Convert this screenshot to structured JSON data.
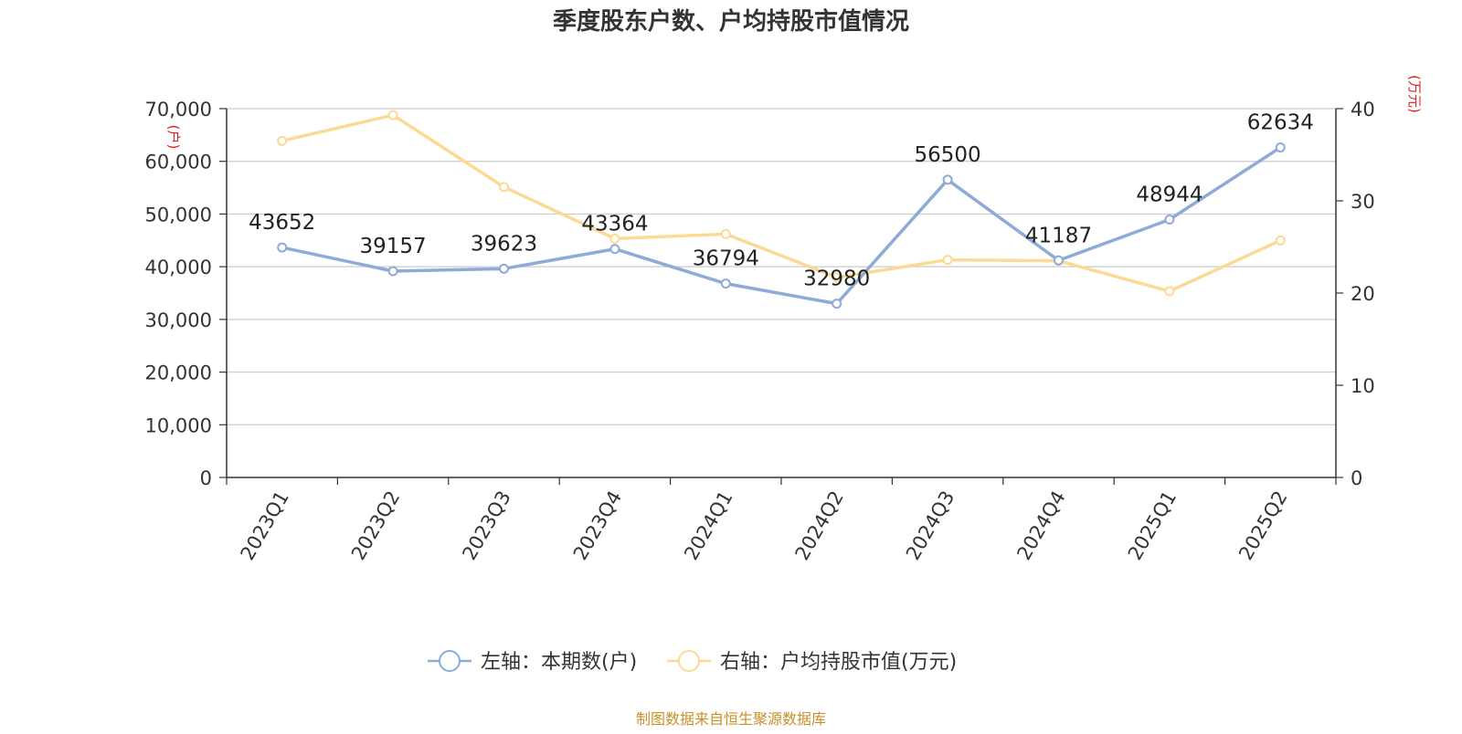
{
  "chart_data": {
    "type": "line",
    "title": "季度股东户数、户均持股市值情况",
    "categories": [
      "2023Q1",
      "2023Q2",
      "2023Q3",
      "2023Q4",
      "2024Q1",
      "2024Q2",
      "2024Q3",
      "2024Q4",
      "2025Q1",
      "2025Q2"
    ],
    "left_axis": {
      "unit_label": "(户)",
      "ylim": [
        0,
        70000
      ],
      "ticks": [
        "0",
        "10,000",
        "20,000",
        "30,000",
        "40,000",
        "50,000",
        "60,000",
        "70,000"
      ]
    },
    "right_axis": {
      "unit_label": "(万元)",
      "ylim": [
        0,
        40
      ],
      "ticks": [
        "0",
        "10",
        "20",
        "30",
        "40"
      ]
    },
    "series": [
      {
        "name": "左轴：本期数(户)",
        "axis": "left",
        "color": "#8eaad6",
        "values": [
          43652,
          39157,
          39623,
          43364,
          36794,
          32980,
          56500,
          41187,
          48944,
          62634
        ],
        "labels": [
          "43652",
          "39157",
          "39623",
          "43364",
          "36794",
          "32980",
          "56500",
          "41187",
          "48944",
          "62634"
        ]
      },
      {
        "name": "右轴：户均持股市值(万元)",
        "axis": "right",
        "color": "#fcd995",
        "values": [
          36.5,
          39.3,
          31.5,
          25.9,
          26.4,
          21.7,
          23.6,
          23.5,
          20.2,
          25.7
        ]
      }
    ],
    "grid": true,
    "legend_position": "bottom-center",
    "source_text": "制图数据来自恒生聚源数据库",
    "source_color": "#c8902a",
    "unit_label_color": "#e02020"
  }
}
